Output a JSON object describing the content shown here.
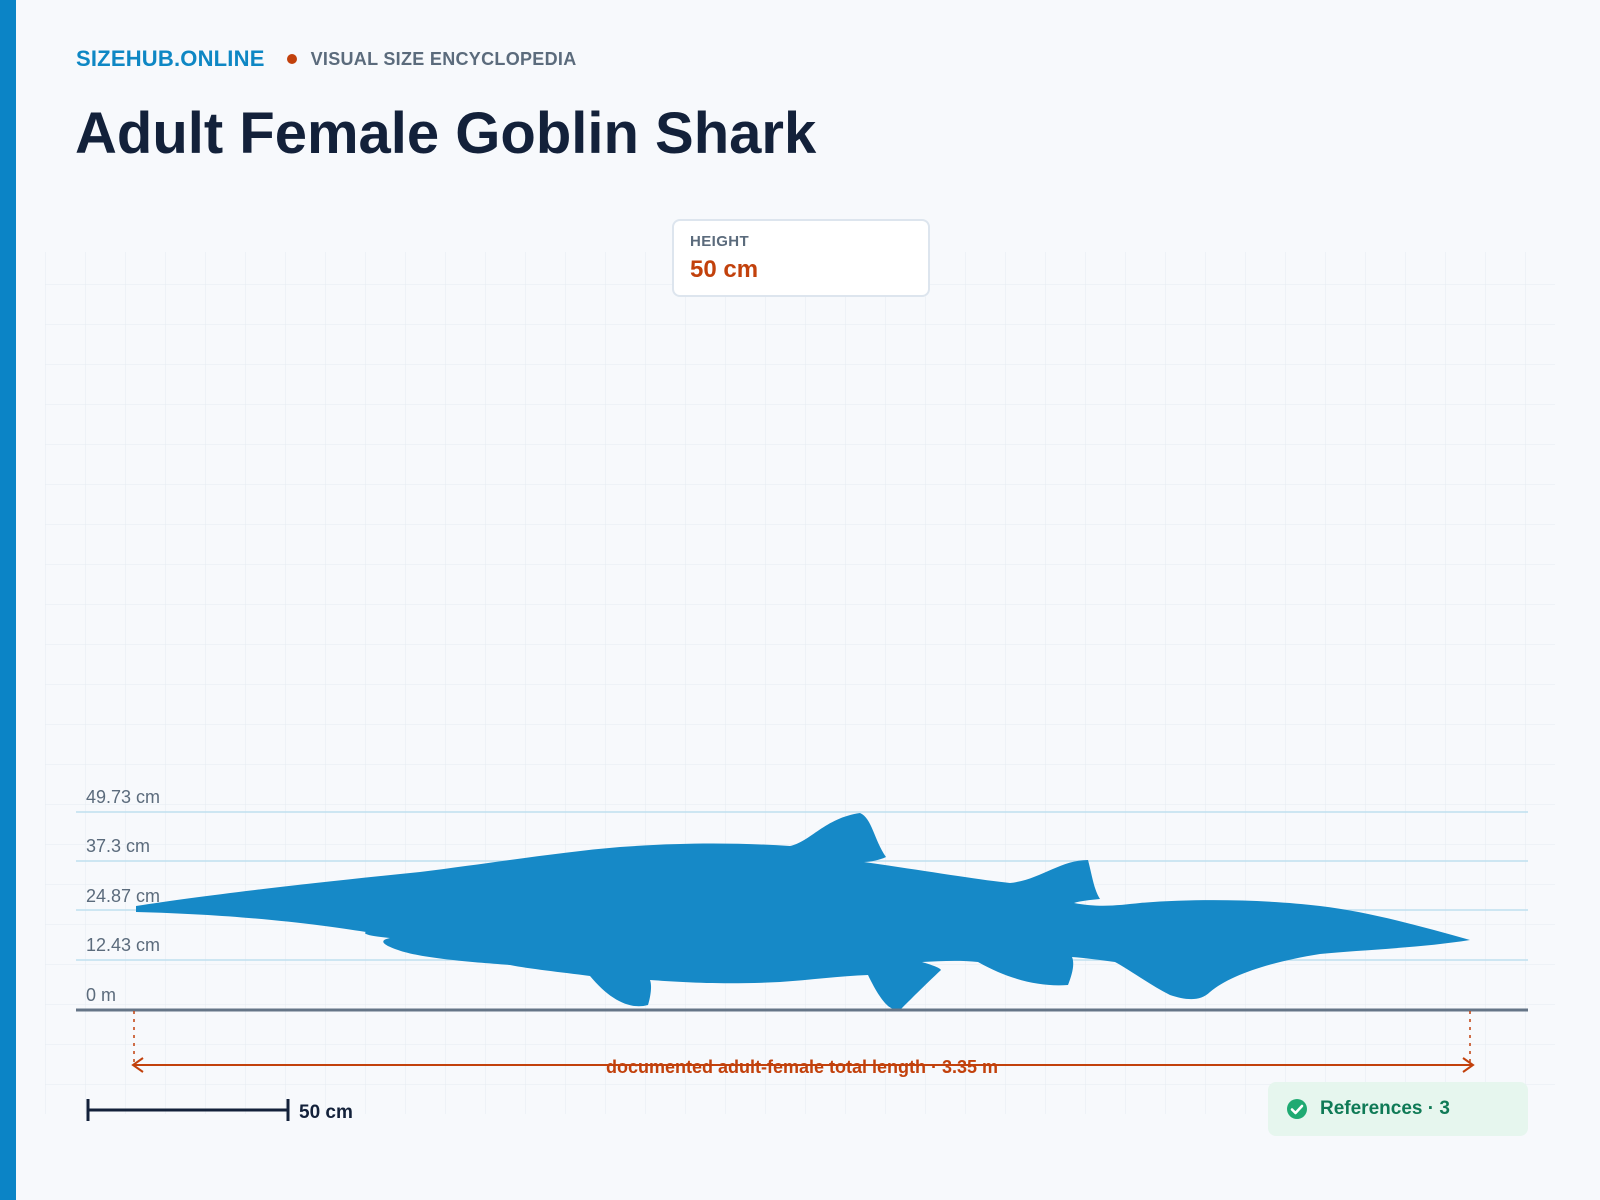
{
  "site": {
    "brand": "SIZEHUB.ONLINE",
    "tagline": "VISUAL SIZE ENCYCLOPEDIA"
  },
  "page": {
    "title": "Adult Female Goblin Shark"
  },
  "height_card": {
    "label": "HEIGHT",
    "value": "50 cm"
  },
  "ruler": {
    "ticks": [
      "49.73 cm",
      "37.3 cm",
      "24.87 cm",
      "12.43 cm",
      "0 m"
    ]
  },
  "measurement": {
    "label": "documented adult-female total length · 3.35 m"
  },
  "scale_bar": {
    "label": "50 cm"
  },
  "references": {
    "text": "References · 3",
    "icon": "check-circle-icon"
  },
  "colors": {
    "accent": "#0b84c6",
    "silhouette": "#1689c7",
    "measure": "#c2410c",
    "title": "#13213a",
    "references_bg": "#e6f6ee",
    "references_fg": "#0f7a56"
  }
}
